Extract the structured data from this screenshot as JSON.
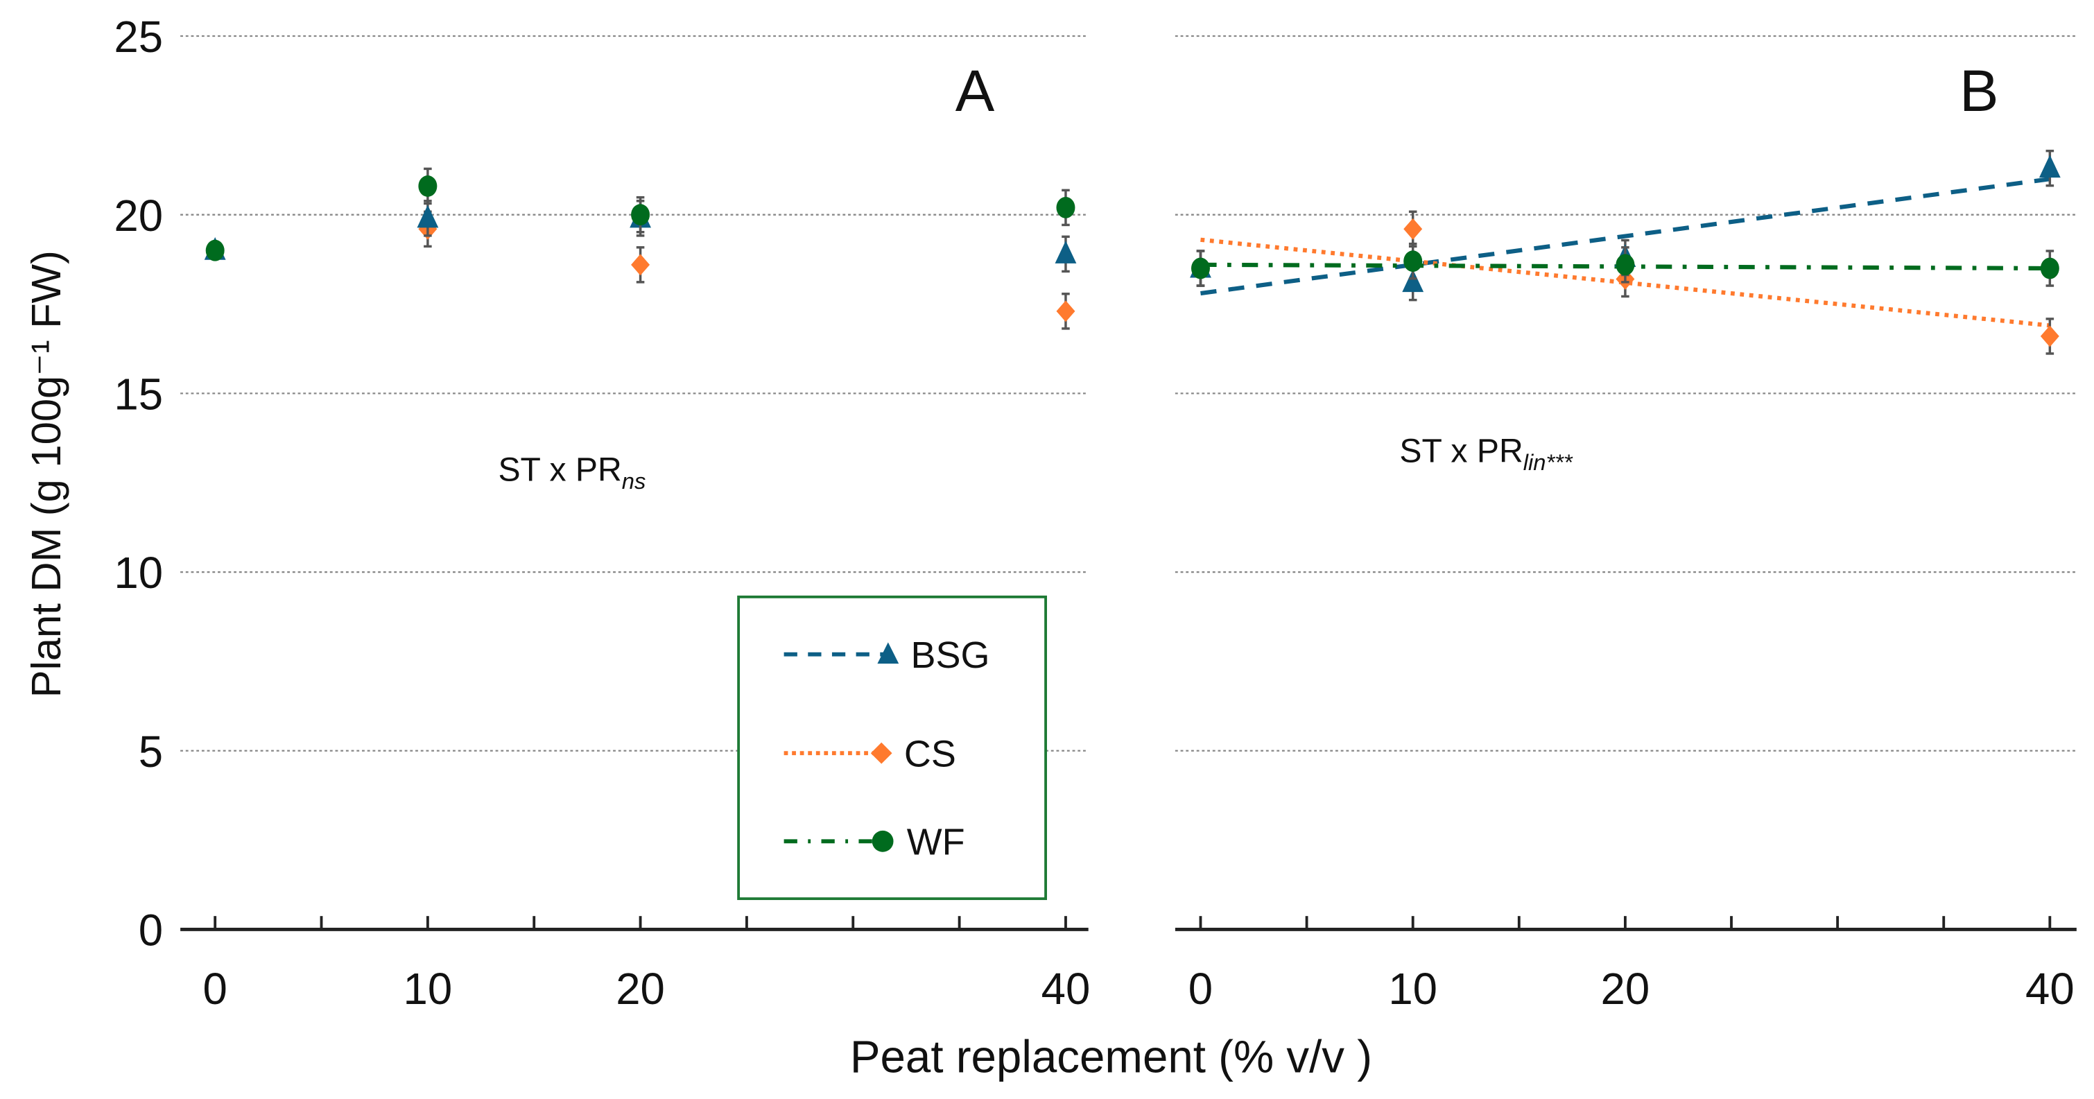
{
  "chart_data": [
    {
      "type": "scatter",
      "panel_label": "A",
      "annotation": {
        "main": "ST x PR",
        "subscript": "ns"
      },
      "x": [
        0,
        10,
        20,
        40
      ],
      "series": [
        {
          "name": "BSG",
          "values": [
            19.0,
            19.9,
            19.9,
            18.9
          ],
          "trend": null
        },
        {
          "name": "CS",
          "values": [
            19.0,
            19.6,
            18.6,
            17.3
          ],
          "trend": null
        },
        {
          "name": "WF",
          "values": [
            19.0,
            20.8,
            20.0,
            20.2
          ],
          "trend": null
        }
      ],
      "xlim": [
        0,
        40
      ],
      "ylim": [
        0,
        25
      ]
    },
    {
      "type": "line",
      "panel_label": "B",
      "annotation": {
        "main": "ST x PR",
        "subscript": "lin***"
      },
      "x": [
        0,
        10,
        20,
        40
      ],
      "series": [
        {
          "name": "BSG",
          "values": [
            18.5,
            18.1,
            18.8,
            21.3
          ],
          "trend": [
            17.8,
            21.0
          ]
        },
        {
          "name": "CS",
          "values": [
            18.5,
            19.6,
            18.2,
            16.6
          ],
          "trend": [
            19.3,
            16.9
          ]
        },
        {
          "name": "WF",
          "values": [
            18.5,
            18.7,
            18.6,
            18.5
          ],
          "trend": [
            18.6,
            18.5
          ]
        }
      ],
      "xlim": [
        0,
        40
      ],
      "ylim": [
        0,
        25
      ]
    }
  ],
  "axes": {
    "ylabel": "Plant DM (g 100g⁻¹ FW)",
    "xlabel": "Peat replacement (% v/v )",
    "yticks": [
      "0",
      "5",
      "10",
      "15",
      "20",
      "25"
    ],
    "xticks": [
      "0",
      "10",
      "20",
      "40"
    ]
  },
  "legend": {
    "placement": "bottom-center of panel A",
    "items": [
      {
        "name": "BSG",
        "marker": "triangle",
        "line": "dashed",
        "color": "#0d5f86"
      },
      {
        "name": "CS",
        "marker": "diamond",
        "line": "dotted",
        "color": "#ff7a2e"
      },
      {
        "name": "WF",
        "marker": "circle",
        "line": "dash-dot",
        "color": "#006b1e"
      }
    ]
  }
}
